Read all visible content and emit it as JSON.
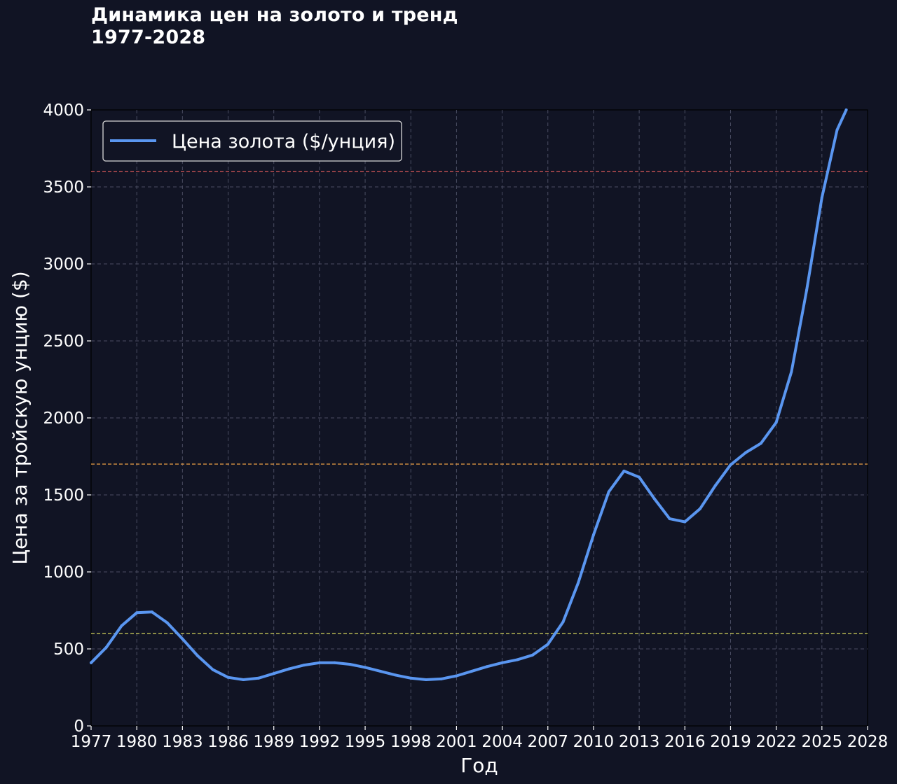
{
  "chart_data": {
    "type": "line",
    "title_line1": "Динамика цен на золото и тренд",
    "title_line2": "1977-2028",
    "xlabel": "Год",
    "ylabel": "Цена за тройскую унцию ($)",
    "xlim": [
      1977,
      2028
    ],
    "ylim": [
      0,
      4000
    ],
    "x_ticks": [
      "1977",
      "1980",
      "1983",
      "1986",
      "1989",
      "1992",
      "1995",
      "1998",
      "2001",
      "2004",
      "2007",
      "2010",
      "2013",
      "2016",
      "2019",
      "2022",
      "2025",
      "2028"
    ],
    "y_ticks": [
      "0",
      "500",
      "1000",
      "1500",
      "2000",
      "2500",
      "3000",
      "3500",
      "4000"
    ],
    "grid": true,
    "legend_position": "top-left",
    "series": [
      {
        "name": "Цена золота ($/унция)",
        "color": "#5a96f0",
        "x": [
          1977,
          1978,
          1979,
          1980,
          1981,
          1982,
          1983,
          1984,
          1985,
          1986,
          1987,
          1988,
          1989,
          1990,
          1991,
          1992,
          1993,
          1994,
          1995,
          1996,
          1997,
          1998,
          1999,
          2000,
          2001,
          2002,
          2003,
          2004,
          2005,
          2006,
          2007,
          2008,
          2009,
          2010,
          2011,
          2012,
          2013,
          2014,
          2015,
          2016,
          2017,
          2018,
          2019,
          2020,
          2021,
          2022,
          2023,
          2024,
          2025,
          2026,
          2026.6
        ],
        "y": [
          410,
          510,
          650,
          735,
          740,
          670,
          565,
          455,
          365,
          315,
          300,
          310,
          340,
          370,
          395,
          410,
          410,
          400,
          380,
          355,
          330,
          310,
          300,
          305,
          325,
          355,
          385,
          410,
          430,
          460,
          530,
          675,
          930,
          1240,
          1520,
          1655,
          1615,
          1475,
          1345,
          1325,
          1410,
          1560,
          1695,
          1775,
          1835,
          1970,
          2300,
          2830,
          3430,
          3870,
          4000
        ]
      }
    ],
    "reference_lines": [
      {
        "y": 3600,
        "color": "#e05a5a"
      },
      {
        "y": 1700,
        "color": "#f0a046"
      },
      {
        "y": 600,
        "color": "#d2d25a"
      }
    ]
  }
}
